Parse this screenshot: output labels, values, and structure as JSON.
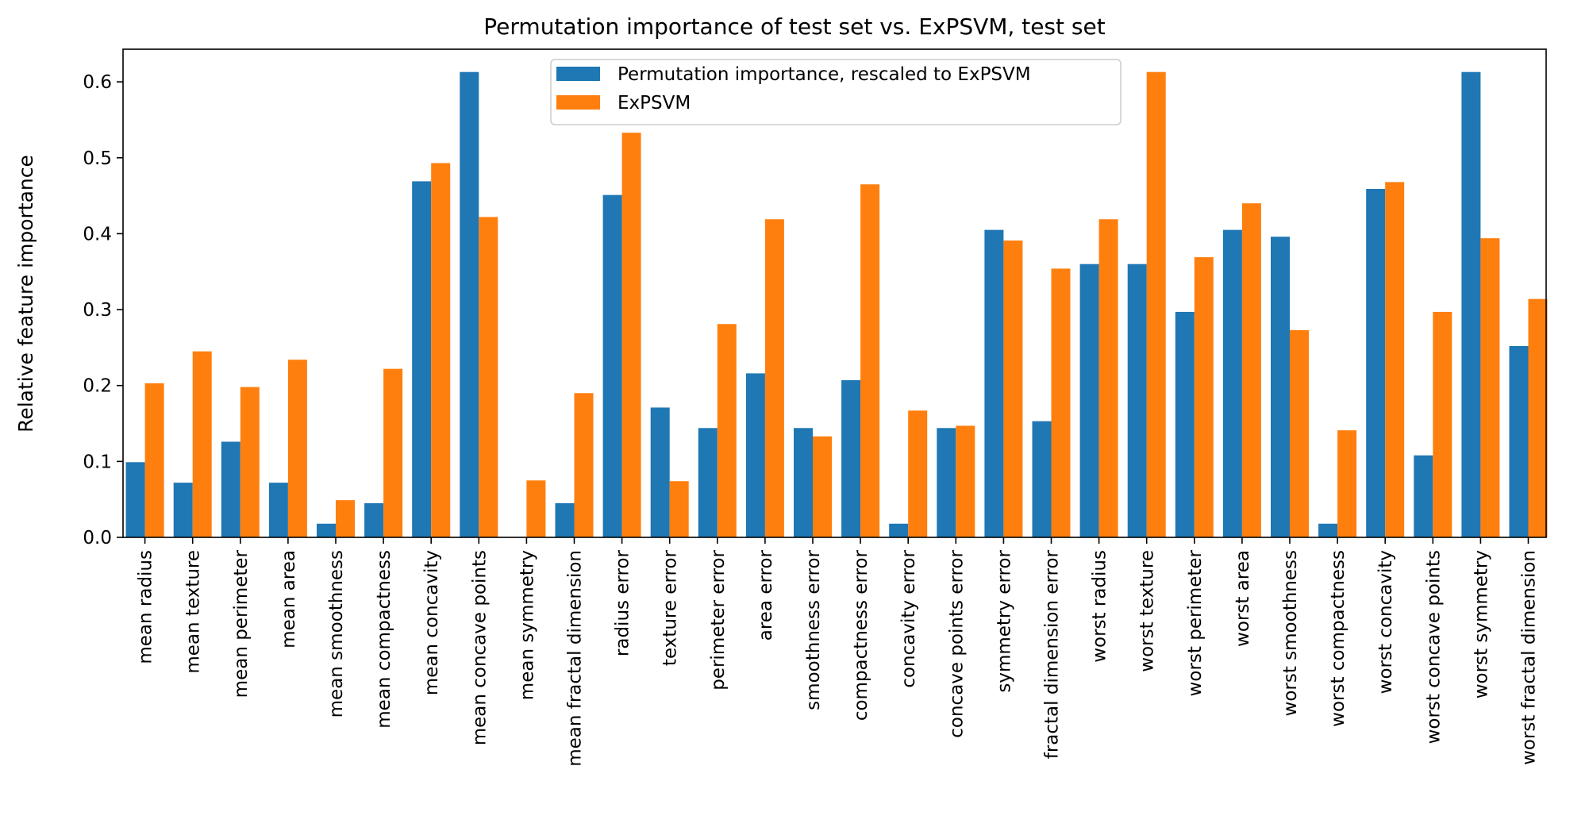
{
  "chart_data": {
    "type": "bar",
    "title": "Permutation importance of test set vs. ExPSVM, test set",
    "xlabel": "",
    "ylabel": "Relative feature importance",
    "ylim": [
      0,
      0.643
    ],
    "yticks": [
      0.0,
      0.1,
      0.2,
      0.3,
      0.4,
      0.5,
      0.6
    ],
    "ytick_labels": [
      "0.0",
      "0.1",
      "0.2",
      "0.3",
      "0.4",
      "0.5",
      "0.6"
    ],
    "grid": false,
    "legend_position": "top-center",
    "categories": [
      "mean radius",
      "mean texture",
      "mean perimeter",
      "mean area",
      "mean smoothness",
      "mean compactness",
      "mean concavity",
      "mean concave points",
      "mean symmetry",
      "mean fractal dimension",
      "radius error",
      "texture error",
      "perimeter error",
      "area error",
      "smoothness error",
      "compactness error",
      "concavity error",
      "concave points error",
      "symmetry error",
      "fractal dimension error",
      "worst radius",
      "worst texture",
      "worst perimeter",
      "worst area",
      "worst smoothness",
      "worst compactness",
      "worst concavity",
      "worst concave points",
      "worst symmetry",
      "worst fractal dimension"
    ],
    "series": [
      {
        "name": "Permutation importance, rescaled to ExPSVM",
        "color": "#1f77b4",
        "values": [
          0.099,
          0.072,
          0.126,
          0.072,
          0.018,
          0.045,
          0.469,
          0.613,
          0.0,
          0.045,
          0.451,
          0.171,
          0.144,
          0.216,
          0.144,
          0.207,
          0.018,
          0.144,
          0.405,
          0.153,
          0.36,
          0.36,
          0.297,
          0.405,
          0.396,
          0.018,
          0.459,
          0.108,
          0.613,
          0.252
        ]
      },
      {
        "name": "ExPSVM",
        "color": "#ff7f0e",
        "values": [
          0.203,
          0.245,
          0.198,
          0.234,
          0.049,
          0.222,
          0.493,
          0.422,
          0.075,
          0.19,
          0.533,
          0.074,
          0.281,
          0.419,
          0.133,
          0.465,
          0.167,
          0.147,
          0.391,
          0.354,
          0.419,
          0.613,
          0.369,
          0.44,
          0.273,
          0.141,
          0.468,
          0.297,
          0.394,
          0.314
        ]
      }
    ]
  }
}
